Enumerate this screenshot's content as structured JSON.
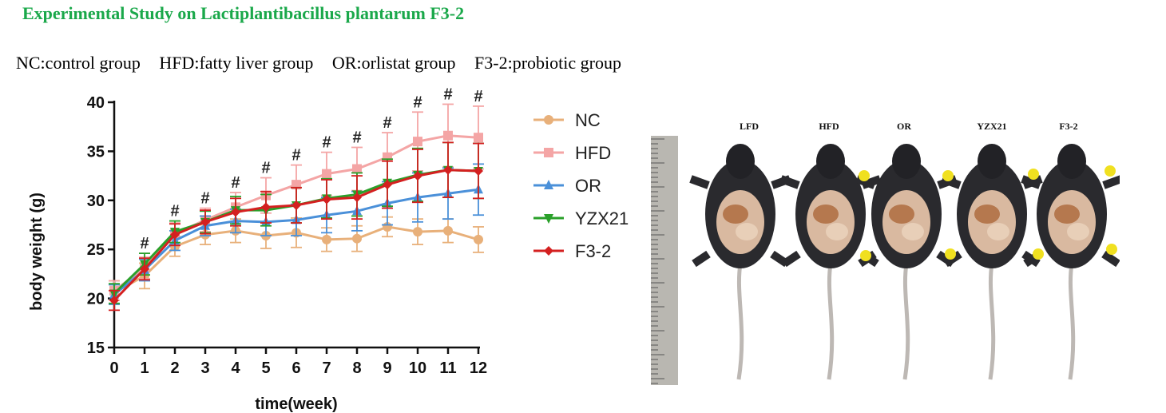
{
  "page": {
    "title": "Experimental Study on Lactiplantibacillus plantarum F3-2",
    "group_legend": [
      "NC:control group",
      "HFD:fatty liver group",
      "OR:orlistat group",
      "F3-2:probiotic group"
    ]
  },
  "chart_data": {
    "type": "line",
    "xlabel": "time(week)",
    "ylabel": "body weight (g)",
    "x": [
      0,
      1,
      2,
      3,
      4,
      5,
      6,
      7,
      8,
      9,
      10,
      11,
      12
    ],
    "xlim": [
      0,
      12
    ],
    "ylim": [
      15,
      40
    ],
    "yticks": [
      15,
      20,
      25,
      30,
      35,
      40
    ],
    "legend_position": "right",
    "significance_marker": "#",
    "significance_weeks": [
      1,
      2,
      3,
      4,
      5,
      6,
      7,
      8,
      9,
      10,
      11,
      12
    ],
    "series": [
      {
        "name": "NC",
        "color": "#e8b07a",
        "marker": "circle",
        "values": [
          20.6,
          22.3,
          25.3,
          26.5,
          26.9,
          26.4,
          26.7,
          26.0,
          26.1,
          27.3,
          26.8,
          26.9,
          26.0
        ],
        "error": [
          1.2,
          1.3,
          1.0,
          1.0,
          1.2,
          1.3,
          1.5,
          1.2,
          1.3,
          1.0,
          1.3,
          1.2,
          1.3
        ]
      },
      {
        "name": "HFD",
        "color": "#f4a5a5",
        "marker": "square",
        "values": [
          20.8,
          23.1,
          26.6,
          28.0,
          29.3,
          30.5,
          31.6,
          32.7,
          33.2,
          34.4,
          36.0,
          36.6,
          36.4
        ],
        "error": [
          1.0,
          1.1,
          1.1,
          1.2,
          1.5,
          1.8,
          2.0,
          2.2,
          2.2,
          2.5,
          3.0,
          3.2,
          3.2
        ]
      },
      {
        "name": "OR",
        "color": "#4a90d9",
        "marker": "triangle-up",
        "values": [
          20.4,
          22.9,
          25.9,
          27.4,
          27.9,
          27.8,
          28.0,
          28.5,
          28.9,
          29.7,
          30.3,
          30.7,
          31.1
        ],
        "error": [
          1.0,
          1.1,
          1.0,
          1.0,
          1.2,
          1.4,
          1.6,
          1.8,
          2.0,
          2.2,
          2.5,
          2.6,
          2.6
        ]
      },
      {
        "name": "YZX21",
        "color": "#2aa02a",
        "marker": "triangle-down",
        "values": [
          20.5,
          23.5,
          26.8,
          27.8,
          29.0,
          29.0,
          29.5,
          30.2,
          30.6,
          31.8,
          32.6,
          33.1,
          33.0
        ],
        "error": [
          1.0,
          1.1,
          1.1,
          1.1,
          1.4,
          1.6,
          1.8,
          2.0,
          2.2,
          2.4,
          2.7,
          2.8,
          2.8
        ]
      },
      {
        "name": "F3-2",
        "color": "#d42020",
        "marker": "diamond",
        "values": [
          19.8,
          23.0,
          26.5,
          27.8,
          28.8,
          29.3,
          29.5,
          30.1,
          30.3,
          31.6,
          32.5,
          33.1,
          33.0
        ],
        "error": [
          1.0,
          1.1,
          1.1,
          1.2,
          1.4,
          1.6,
          1.8,
          2.0,
          2.2,
          2.4,
          2.7,
          2.8,
          2.8
        ]
      }
    ]
  },
  "photo": {
    "labels": [
      "LFD",
      "HFD",
      "OR",
      "YZX21",
      "F3-2"
    ]
  }
}
